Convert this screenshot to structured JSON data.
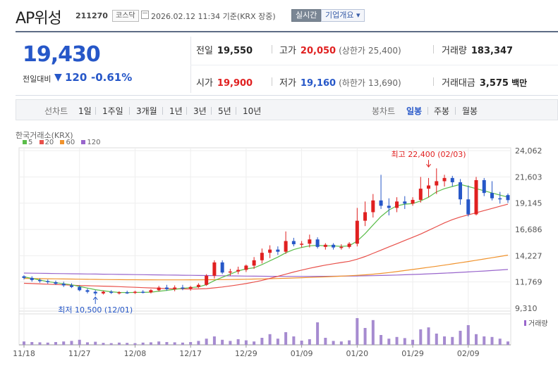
{
  "header": {
    "stock_name": "AP위성",
    "stock_code": "211270",
    "market_badge": "코스닥",
    "timestamp": "2026.02.12 11:34 기준(KRX 장중)",
    "realtime_button": "실시간",
    "overview_button": "기업개요 ▾",
    "calendar_icon": "calendar-icon"
  },
  "quote": {
    "price": "19,430",
    "change_label": "전일대비",
    "change_arrow": "▼",
    "change_value": "120",
    "change_pct": "-0.61%",
    "prev_close_label": "전일",
    "prev_close": "19,550",
    "high_label": "고가",
    "high": "20,050",
    "upper_limit_label": "(상한가",
    "upper_limit": "25,400)",
    "volume_label": "거래량",
    "volume": "183,347",
    "open_label": "시가",
    "open": "19,900",
    "low_label": "저가",
    "low": "19,160",
    "lower_limit_label": "(하한가",
    "lower_limit": "13,690)",
    "value_label": "거래대금",
    "value": "3,575",
    "value_unit": "백만",
    "colors": {
      "up": "#e02020",
      "down": "#2657c8"
    }
  },
  "period_bar": {
    "line_chart_label": "선차트",
    "periods": [
      "1일",
      "1주일",
      "3개월",
      "1년",
      "3년",
      "5년",
      "10년"
    ],
    "candle_label": "봉차트",
    "candle_periods": [
      "일봉",
      "주봉",
      "월봉"
    ],
    "active_candle": "일봉"
  },
  "chart_data": {
    "type": "candlestick",
    "source_label": "한국거래소(KRX)",
    "legend": [
      {
        "name": "5",
        "color": "#5bbd4a"
      },
      {
        "name": "20",
        "color": "#e8504a"
      },
      {
        "name": "60",
        "color": "#f0922c"
      },
      {
        "name": "120",
        "color": "#9966cc"
      }
    ],
    "y_ticks": [
      24062,
      21603,
      19145,
      16686,
      14227,
      11769,
      9310
    ],
    "y_tick_labels": [
      "24,062",
      "21,603",
      "19,145",
      "16,686",
      "14,227",
      "11,769",
      "9,310"
    ],
    "ylim": [
      9310,
      24062
    ],
    "x_tick_labels": [
      "11/18",
      "11/27",
      "12/08",
      "12/17",
      "12/29",
      "01/09",
      "01/20",
      "01/29",
      "02/09"
    ],
    "x_tick_index": [
      0,
      7,
      14,
      21,
      28,
      35,
      42,
      49,
      56
    ],
    "annotations": {
      "max_label": "최고 22,400 (02/03)",
      "max_value": 22400,
      "max_index": 51,
      "min_label": "최저 10,500 (12/01)",
      "min_value": 10500,
      "min_index": 9
    },
    "volume_label": "거래량",
    "candles": [
      {
        "o": 12300,
        "h": 12400,
        "l": 12000,
        "c": 12150
      },
      {
        "o": 12150,
        "h": 12300,
        "l": 11800,
        "c": 11950
      },
      {
        "o": 11950,
        "h": 12100,
        "l": 11700,
        "c": 11850
      },
      {
        "o": 11850,
        "h": 12000,
        "l": 11600,
        "c": 11750
      },
      {
        "o": 11750,
        "h": 11900,
        "l": 11500,
        "c": 11600
      },
      {
        "o": 11600,
        "h": 11800,
        "l": 11300,
        "c": 11450
      },
      {
        "o": 11450,
        "h": 11650,
        "l": 11200,
        "c": 11300
      },
      {
        "o": 11300,
        "h": 11450,
        "l": 10900,
        "c": 11000
      },
      {
        "o": 11000,
        "h": 11150,
        "l": 10700,
        "c": 10850
      },
      {
        "o": 10850,
        "h": 11000,
        "l": 10500,
        "c": 10700
      },
      {
        "o": 10700,
        "h": 10950,
        "l": 10600,
        "c": 10850
      },
      {
        "o": 10850,
        "h": 11000,
        "l": 10650,
        "c": 10750
      },
      {
        "o": 10750,
        "h": 10900,
        "l": 10600,
        "c": 10800
      },
      {
        "o": 10800,
        "h": 10950,
        "l": 10650,
        "c": 10750
      },
      {
        "o": 10750,
        "h": 10950,
        "l": 10650,
        "c": 10850
      },
      {
        "o": 10850,
        "h": 11000,
        "l": 10700,
        "c": 10800
      },
      {
        "o": 10800,
        "h": 11100,
        "l": 10700,
        "c": 11000
      },
      {
        "o": 11000,
        "h": 11400,
        "l": 10900,
        "c": 11250
      },
      {
        "o": 11250,
        "h": 11500,
        "l": 10950,
        "c": 11100
      },
      {
        "o": 11100,
        "h": 11450,
        "l": 10900,
        "c": 11250
      },
      {
        "o": 11250,
        "h": 11500,
        "l": 11000,
        "c": 11150
      },
      {
        "o": 11150,
        "h": 11400,
        "l": 10950,
        "c": 11300
      },
      {
        "o": 11300,
        "h": 11650,
        "l": 11200,
        "c": 11500
      },
      {
        "o": 11500,
        "h": 12500,
        "l": 11400,
        "c": 12350
      },
      {
        "o": 12350,
        "h": 13800,
        "l": 12100,
        "c": 13600
      },
      {
        "o": 13600,
        "h": 13800,
        "l": 12500,
        "c": 12650
      },
      {
        "o": 12650,
        "h": 13000,
        "l": 12350,
        "c": 12750
      },
      {
        "o": 12750,
        "h": 13200,
        "l": 12500,
        "c": 12900
      },
      {
        "o": 12900,
        "h": 13400,
        "l": 12700,
        "c": 13300
      },
      {
        "o": 13300,
        "h": 14100,
        "l": 13000,
        "c": 13800
      },
      {
        "o": 13800,
        "h": 14900,
        "l": 13500,
        "c": 14500
      },
      {
        "o": 14500,
        "h": 15200,
        "l": 14000,
        "c": 14800
      },
      {
        "o": 14800,
        "h": 15100,
        "l": 14300,
        "c": 14600
      },
      {
        "o": 14600,
        "h": 16500,
        "l": 14400,
        "c": 15600
      },
      {
        "o": 15600,
        "h": 15900,
        "l": 15100,
        "c": 15300
      },
      {
        "o": 15300,
        "h": 15600,
        "l": 15000,
        "c": 15350
      },
      {
        "o": 15350,
        "h": 16200,
        "l": 15000,
        "c": 15750
      },
      {
        "o": 15750,
        "h": 15950,
        "l": 14900,
        "c": 15050
      },
      {
        "o": 15050,
        "h": 15400,
        "l": 14800,
        "c": 15250
      },
      {
        "o": 15250,
        "h": 15400,
        "l": 14800,
        "c": 15000
      },
      {
        "o": 15000,
        "h": 15300,
        "l": 14800,
        "c": 15050
      },
      {
        "o": 15050,
        "h": 15500,
        "l": 14900,
        "c": 15350
      },
      {
        "o": 15350,
        "h": 18700,
        "l": 15100,
        "c": 17500
      },
      {
        "o": 17500,
        "h": 19300,
        "l": 17000,
        "c": 18300
      },
      {
        "o": 18300,
        "h": 20000,
        "l": 17800,
        "c": 19400
      },
      {
        "o": 19400,
        "h": 21800,
        "l": 18600,
        "c": 18900
      },
      {
        "o": 18900,
        "h": 19600,
        "l": 18000,
        "c": 18700
      },
      {
        "o": 18700,
        "h": 19700,
        "l": 18300,
        "c": 19300
      },
      {
        "o": 19300,
        "h": 19800,
        "l": 18600,
        "c": 19100
      },
      {
        "o": 19100,
        "h": 19700,
        "l": 18900,
        "c": 19450
      },
      {
        "o": 19450,
        "h": 21600,
        "l": 19200,
        "c": 20500
      },
      {
        "o": 20500,
        "h": 21500,
        "l": 19700,
        "c": 20800
      },
      {
        "o": 20800,
        "h": 22400,
        "l": 20000,
        "c": 21200
      },
      {
        "o": 21200,
        "h": 21800,
        "l": 20700,
        "c": 21500
      },
      {
        "o": 21500,
        "h": 21700,
        "l": 20700,
        "c": 21100
      },
      {
        "o": 21100,
        "h": 21400,
        "l": 19000,
        "c": 19500
      },
      {
        "o": 19500,
        "h": 20800,
        "l": 17900,
        "c": 18100
      },
      {
        "o": 18100,
        "h": 21600,
        "l": 18000,
        "c": 21300
      },
      {
        "o": 21300,
        "h": 21500,
        "l": 19800,
        "c": 20100
      },
      {
        "o": 20100,
        "h": 21200,
        "l": 19400,
        "c": 19600
      },
      {
        "o": 19600,
        "h": 20200,
        "l": 19100,
        "c": 19550
      },
      {
        "o": 19900,
        "h": 20050,
        "l": 19160,
        "c": 19430
      }
    ],
    "volumes": [
      12,
      10,
      9,
      8,
      10,
      12,
      14,
      18,
      9,
      11,
      7,
      6,
      8,
      7,
      6,
      8,
      9,
      12,
      10,
      9,
      8,
      10,
      14,
      22,
      30,
      18,
      14,
      20,
      16,
      12,
      25,
      38,
      22,
      45,
      30,
      15,
      20,
      80,
      25,
      14,
      12,
      16,
      95,
      60,
      88,
      35,
      22,
      28,
      24,
      18,
      55,
      62,
      40,
      30,
      28,
      50,
      70,
      38,
      30,
      28,
      22,
      12
    ],
    "ma_lines": {
      "ma5": [
        12250,
        12100,
        11950,
        11800,
        11700,
        11600,
        11500,
        11350,
        11200,
        11050,
        10950,
        10850,
        10790,
        10780,
        10790,
        10800,
        10820,
        10900,
        10980,
        11080,
        11180,
        11240,
        11310,
        11520,
        11900,
        12200,
        12500,
        12800,
        13000,
        13100,
        13400,
        13750,
        14100,
        14500,
        14800,
        15000,
        15150,
        15200,
        15150,
        15150,
        15100,
        15150,
        15600,
        16300,
        17100,
        17900,
        18500,
        18900,
        19050,
        19100,
        19350,
        19700,
        20200,
        20500,
        20700,
        20900,
        20700,
        20500,
        20300,
        20100,
        19900,
        19700
      ],
      "ma20": [
        11650,
        11620,
        11590,
        11560,
        11530,
        11500,
        11470,
        11440,
        11420,
        11400,
        11380,
        11360,
        11330,
        11300,
        11270,
        11240,
        11210,
        11180,
        11150,
        11130,
        11120,
        11110,
        11120,
        11150,
        11220,
        11300,
        11400,
        11500,
        11620,
        11760,
        11920,
        12100,
        12300,
        12500,
        12700,
        12880,
        13050,
        13200,
        13350,
        13470,
        13590,
        13700,
        13900,
        14150,
        14450,
        14750,
        15050,
        15350,
        15650,
        15950,
        16250,
        16600,
        16950,
        17300,
        17600,
        17850,
        18050,
        18250,
        18450,
        18650,
        18850,
        19050
      ],
      "ma60": [
        12100,
        12090,
        12080,
        12070,
        12060,
        12050,
        12040,
        12030,
        12020,
        12010,
        12000,
        11990,
        11985,
        11980,
        11975,
        11970,
        11968,
        11966,
        11965,
        11965,
        11966,
        11968,
        11970,
        11975,
        11982,
        11990,
        12000,
        12012,
        12025,
        12040,
        12057,
        12075,
        12095,
        12117,
        12140,
        12165,
        12192,
        12220,
        12250,
        12282,
        12316,
        12352,
        12390,
        12440,
        12500,
        12570,
        12650,
        12740,
        12840,
        12940,
        13040,
        13140,
        13240,
        13350,
        13460,
        13570,
        13680,
        13800,
        13920,
        14040,
        14160,
        14280
      ],
      "ma120": [
        12600,
        12590,
        12580,
        12570,
        12560,
        12550,
        12540,
        12530,
        12520,
        12510,
        12500,
        12490,
        12480,
        12470,
        12460,
        12450,
        12440,
        12430,
        12420,
        12410,
        12400,
        12390,
        12380,
        12370,
        12360,
        12350,
        12340,
        12330,
        12320,
        12310,
        12305,
        12300,
        12298,
        12296,
        12295,
        12295,
        12296,
        12298,
        12300,
        12305,
        12312,
        12320,
        12330,
        12345,
        12360,
        12378,
        12398,
        12420,
        12445,
        12472,
        12500,
        12530,
        12562,
        12596,
        12632,
        12670,
        12710,
        12752,
        12796,
        12842,
        12890,
        12940
      ]
    }
  }
}
